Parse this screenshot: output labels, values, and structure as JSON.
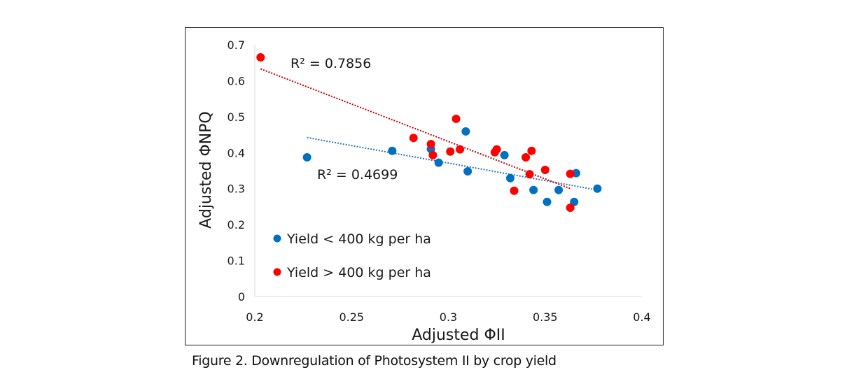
{
  "caption": "Figure 2. Downregulation of Photosystem II by crop yield",
  "chart_data": {
    "type": "scatter",
    "title": "",
    "xlabel": "Adjusted ΦII",
    "ylabel": "Adjusted ΦNPQ",
    "xlim": [
      0.2,
      0.4
    ],
    "ylim": [
      0,
      0.7
    ],
    "x_ticks": [
      0.2,
      0.25,
      0.3,
      0.35,
      0.4
    ],
    "x_tick_labels": [
      "0.2",
      "0.25",
      "0.3",
      "0.35",
      "0.4"
    ],
    "y_ticks": [
      0,
      0.1,
      0.2,
      0.3,
      0.4,
      0.5,
      0.6,
      0.7
    ],
    "y_tick_labels": [
      "0",
      "0.1",
      "0.2",
      "0.3",
      "0.4",
      "0.5",
      "0.6",
      "0.7"
    ],
    "grid": false,
    "legend_position": "bottom-left",
    "series": [
      {
        "name": "Yield < 400 kg per ha",
        "color": "#0070c0",
        "points": [
          {
            "x": 0.227,
            "y": 0.387
          },
          {
            "x": 0.271,
            "y": 0.405
          },
          {
            "x": 0.291,
            "y": 0.41
          },
          {
            "x": 0.295,
            "y": 0.372
          },
          {
            "x": 0.309,
            "y": 0.459
          },
          {
            "x": 0.31,
            "y": 0.348
          },
          {
            "x": 0.329,
            "y": 0.393
          },
          {
            "x": 0.332,
            "y": 0.329
          },
          {
            "x": 0.344,
            "y": 0.296
          },
          {
            "x": 0.351,
            "y": 0.263
          },
          {
            "x": 0.357,
            "y": 0.296
          },
          {
            "x": 0.366,
            "y": 0.343
          },
          {
            "x": 0.365,
            "y": 0.263
          },
          {
            "x": 0.377,
            "y": 0.3
          }
        ],
        "trendline": {
          "type": "linear",
          "x_range": [
            0.227,
            0.376
          ],
          "y_at_start": 0.442,
          "y_at_end": 0.297,
          "r_squared_label": "R² = 0.4699",
          "color": "#2e75b6"
        }
      },
      {
        "name": "Yield > 400 kg per ha",
        "color": "#ff0000",
        "points": [
          {
            "x": 0.203,
            "y": 0.665
          },
          {
            "x": 0.282,
            "y": 0.441
          },
          {
            "x": 0.291,
            "y": 0.424
          },
          {
            "x": 0.292,
            "y": 0.393
          },
          {
            "x": 0.301,
            "y": 0.403
          },
          {
            "x": 0.304,
            "y": 0.494
          },
          {
            "x": 0.306,
            "y": 0.409
          },
          {
            "x": 0.324,
            "y": 0.401
          },
          {
            "x": 0.325,
            "y": 0.409
          },
          {
            "x": 0.334,
            "y": 0.294
          },
          {
            "x": 0.34,
            "y": 0.387
          },
          {
            "x": 0.342,
            "y": 0.34
          },
          {
            "x": 0.343,
            "y": 0.405
          },
          {
            "x": 0.35,
            "y": 0.352
          },
          {
            "x": 0.363,
            "y": 0.341
          },
          {
            "x": 0.363,
            "y": 0.247
          }
        ],
        "trendline": {
          "type": "linear",
          "x_range": [
            0.203,
            0.363
          ],
          "y_at_start": 0.633,
          "y_at_end": 0.3,
          "r_squared_label": "R² = 0.7856",
          "color": "#c00000"
        }
      }
    ]
  }
}
